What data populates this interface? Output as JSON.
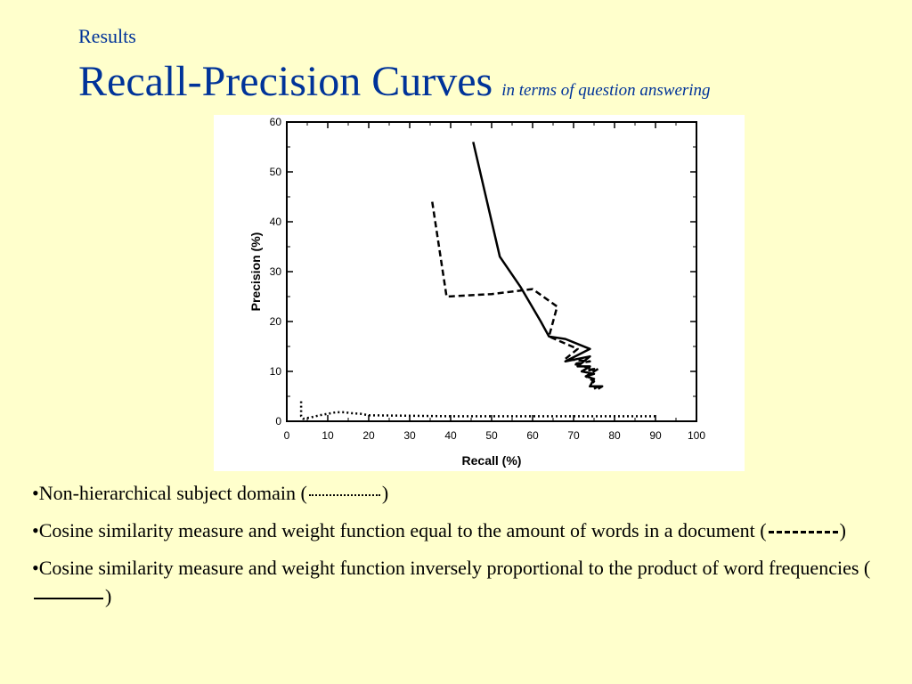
{
  "header": {
    "section": "Results",
    "title": "Recall-Precision Curves",
    "subtitle": "in terms of question answering"
  },
  "chart_data": {
    "type": "line",
    "xlabel": "Recall (%)",
    "ylabel": "Precision (%)",
    "xlim": [
      0,
      100
    ],
    "ylim": [
      0,
      60
    ],
    "x_ticks": [
      0,
      10,
      20,
      30,
      40,
      50,
      60,
      70,
      80,
      90,
      100
    ],
    "y_ticks": [
      0,
      10,
      20,
      30,
      40,
      50,
      60
    ],
    "grid": false,
    "series": [
      {
        "style": "dotted",
        "points": [
          [
            3.5,
            4
          ],
          [
            3.5,
            1
          ],
          [
            4,
            0.5
          ],
          [
            6,
            0.8
          ],
          [
            8,
            1.2
          ],
          [
            10,
            1.5
          ],
          [
            12,
            1.8
          ],
          [
            14,
            1.8
          ],
          [
            16,
            1.6
          ],
          [
            18,
            1.5
          ],
          [
            20,
            1.2
          ],
          [
            30,
            1.1
          ],
          [
            40,
            1.0
          ],
          [
            50,
            1.0
          ],
          [
            60,
            1.0
          ],
          [
            70,
            1.0
          ],
          [
            80,
            1.0
          ],
          [
            90,
            1.0
          ]
        ]
      },
      {
        "style": "dashed",
        "points": [
          [
            35.5,
            44
          ],
          [
            39,
            25
          ],
          [
            50,
            25.5
          ],
          [
            60,
            26.5
          ],
          [
            66,
            23
          ],
          [
            64,
            17
          ],
          [
            71,
            14.5
          ],
          [
            68,
            12.5
          ],
          [
            74,
            12
          ],
          [
            70,
            11.5
          ],
          [
            75,
            10.5
          ],
          [
            72,
            10
          ],
          [
            76,
            10.5
          ],
          [
            73,
            9
          ],
          [
            75,
            8
          ],
          [
            74,
            7
          ],
          [
            76,
            7
          ],
          [
            75,
            6.5
          ]
        ]
      },
      {
        "style": "solid",
        "points": [
          [
            45.5,
            56
          ],
          [
            52,
            33
          ],
          [
            57,
            27
          ],
          [
            62,
            20
          ],
          [
            64,
            17
          ],
          [
            68,
            16.5
          ],
          [
            74,
            14.5
          ],
          [
            68,
            12
          ],
          [
            74,
            13
          ],
          [
            71,
            11
          ],
          [
            74,
            11
          ],
          [
            72,
            10
          ],
          [
            75,
            9.5
          ],
          [
            73,
            9
          ],
          [
            75,
            8.5
          ],
          [
            74,
            7
          ],
          [
            77,
            7
          ],
          [
            76,
            6.5
          ]
        ]
      }
    ]
  },
  "bullets": [
    {
      "prefix": "•Non-hierarchical subject domain (",
      "suffix": ")"
    },
    {
      "prefix": "•Cosine similarity measure and weight function equal to the amount of words in a document (",
      "suffix": ")"
    },
    {
      "prefix": "•Cosine similarity measure and weight function inversely proportional to the product of word frequencies (",
      "suffix": ")"
    }
  ]
}
